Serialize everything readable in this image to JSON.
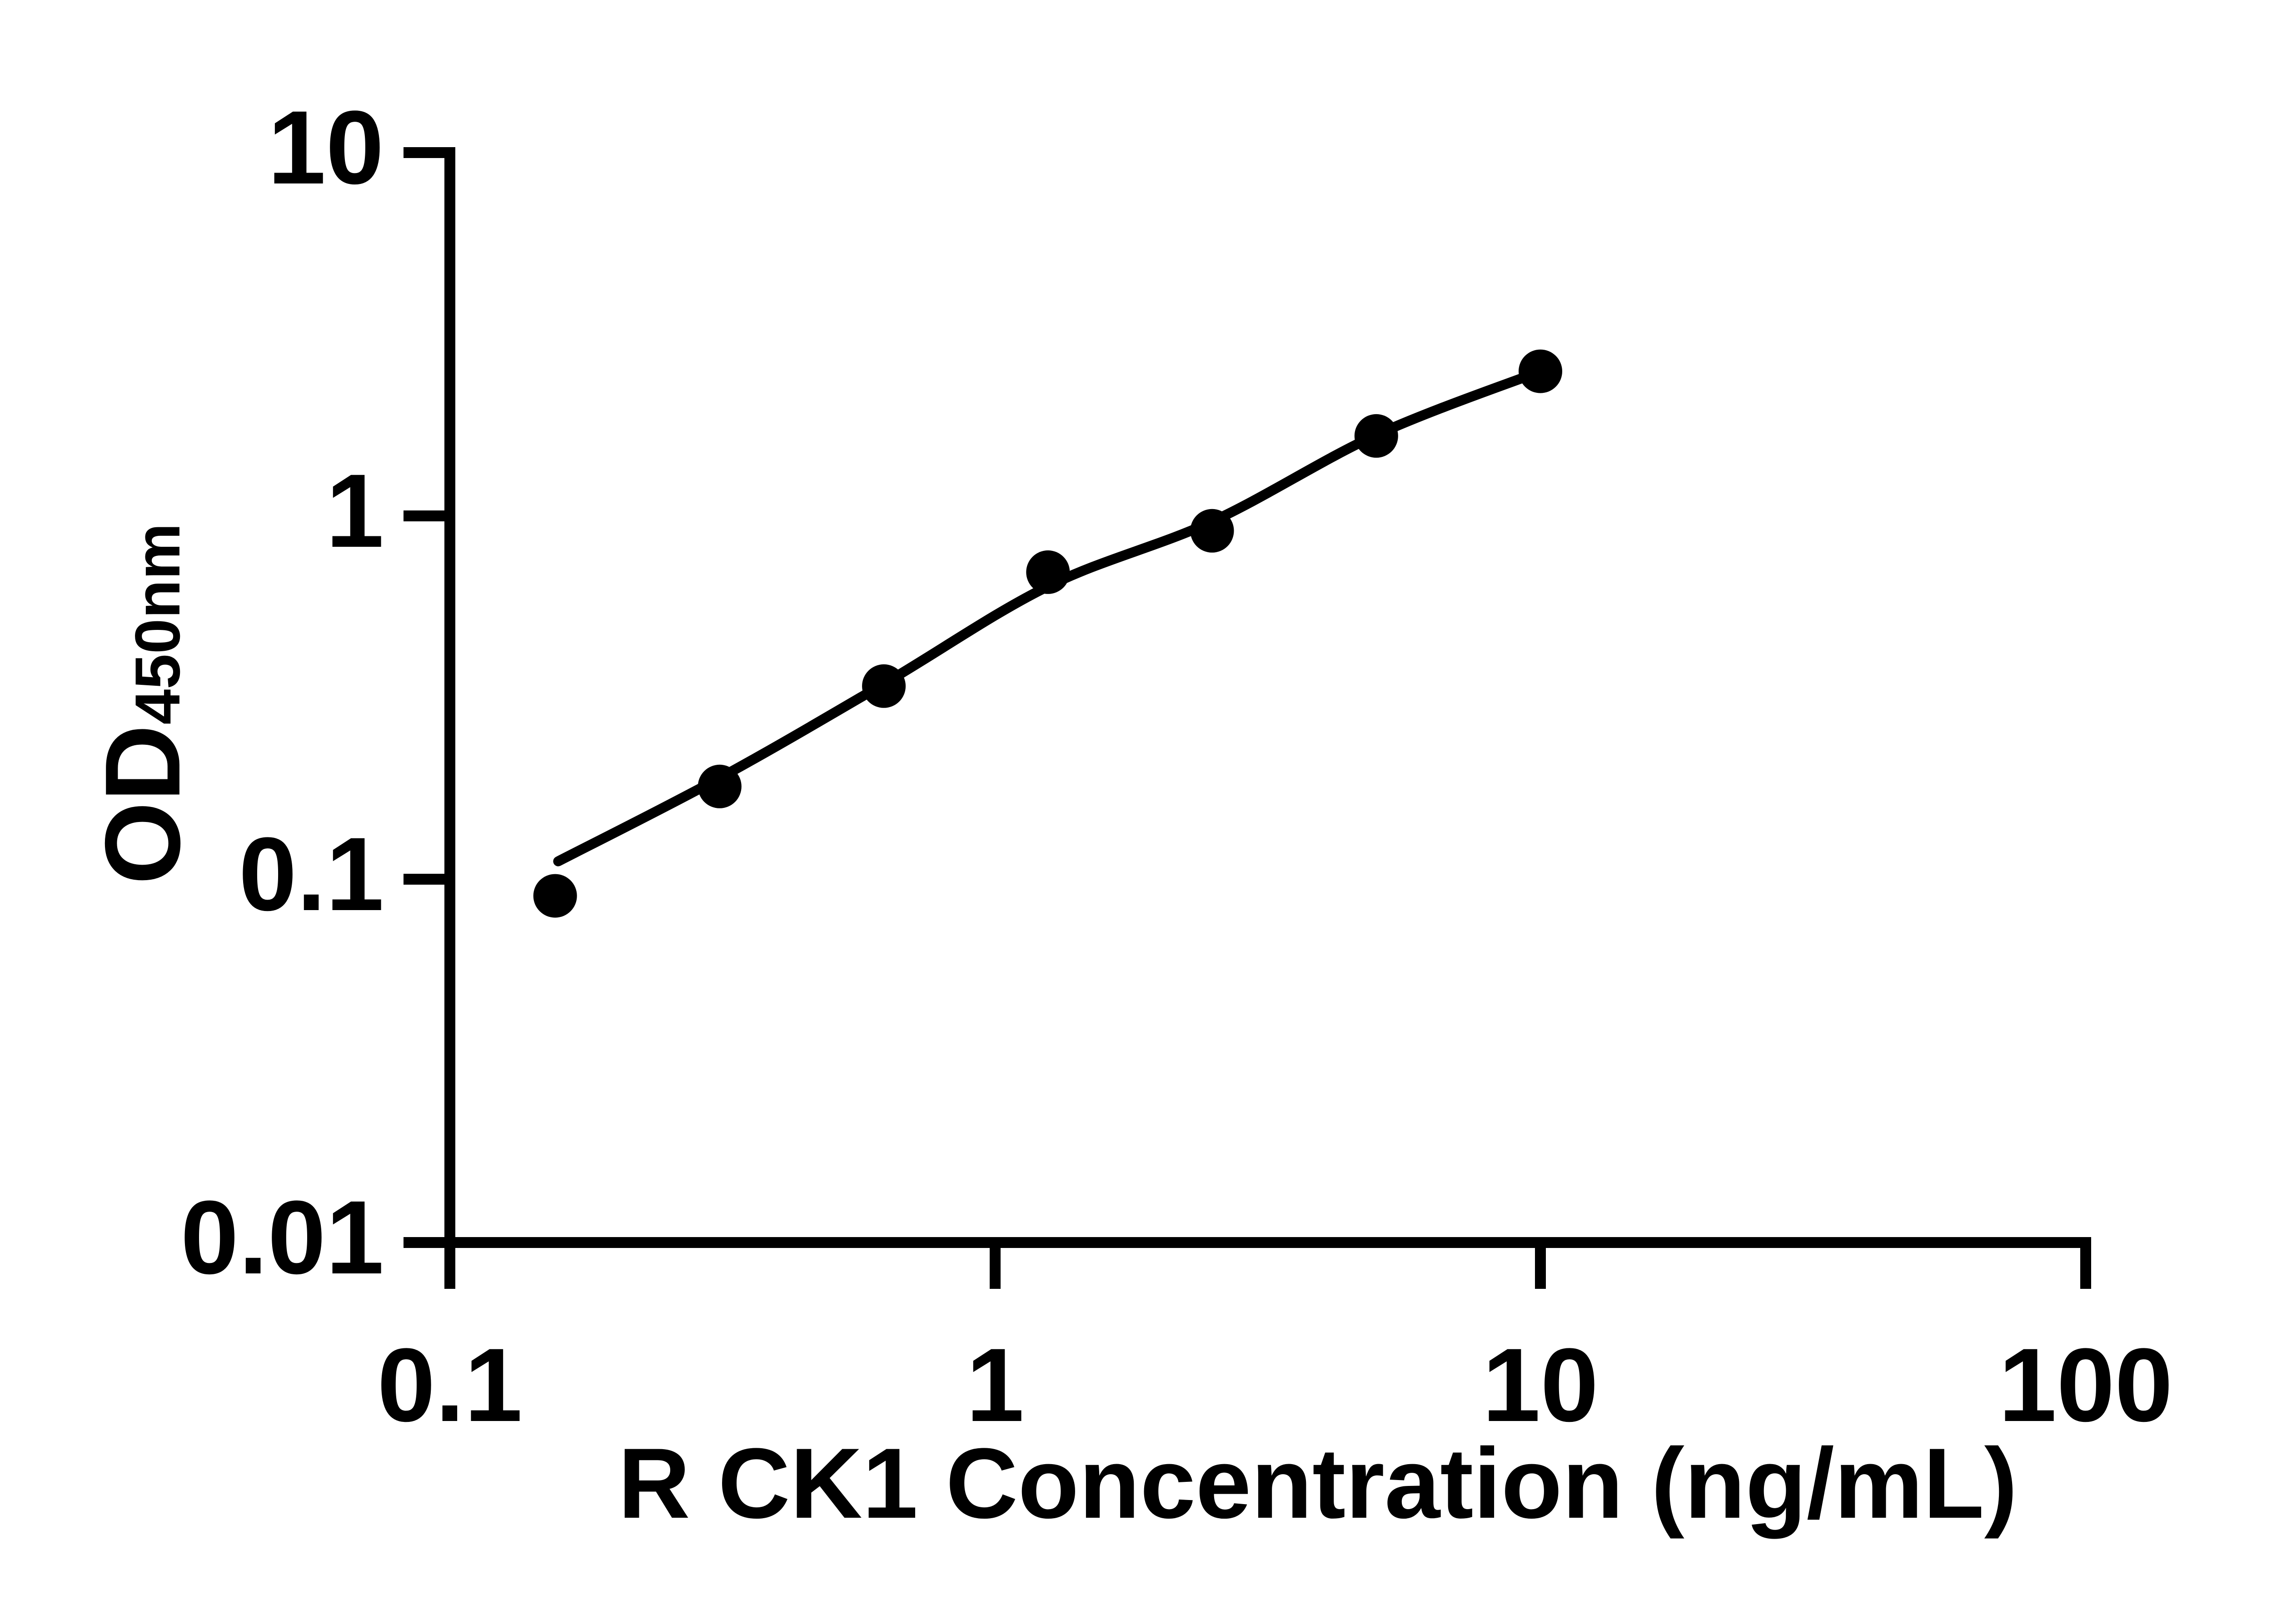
{
  "chart_data": {
    "type": "scatter",
    "title": "",
    "xlabel": "R CK1 Concentration (ng/mL)",
    "ylabel": "OD450nm",
    "ylabel_main": "OD",
    "ylabel_sub": "450nm",
    "x_scale": "log",
    "y_scale": "log",
    "xlim": [
      0.1,
      100
    ],
    "ylim": [
      0.01,
      10
    ],
    "grid": false,
    "legend_position": "none",
    "x_ticks": [
      {
        "value": 0.1,
        "label": "0.1"
      },
      {
        "value": 1,
        "label": "1"
      },
      {
        "value": 10,
        "label": "10"
      },
      {
        "value": 100,
        "label": "100"
      }
    ],
    "y_ticks": [
      {
        "value": 0.01,
        "label": "0.01"
      },
      {
        "value": 0.1,
        "label": "0.1"
      },
      {
        "value": 1,
        "label": "1"
      },
      {
        "value": 10,
        "label": "10"
      }
    ],
    "series": [
      {
        "name": "standard-curve-points",
        "marker": "circle",
        "color": "#000000",
        "points": [
          {
            "x": 0.156,
            "y": 0.09
          },
          {
            "x": 0.3125,
            "y": 0.18
          },
          {
            "x": 0.625,
            "y": 0.34
          },
          {
            "x": 1.25,
            "y": 0.7
          },
          {
            "x": 2.5,
            "y": 0.91
          },
          {
            "x": 5,
            "y": 1.66
          },
          {
            "x": 10,
            "y": 2.5
          }
        ]
      }
    ],
    "fit_curve": {
      "name": "fitted-curve",
      "color": "#000000",
      "points": [
        {
          "x": 0.158,
          "y": 0.112
        },
        {
          "x": 0.3125,
          "y": 0.19
        },
        {
          "x": 0.625,
          "y": 0.345
        },
        {
          "x": 1.25,
          "y": 0.64
        },
        {
          "x": 2.5,
          "y": 0.965
        },
        {
          "x": 5,
          "y": 1.67
        },
        {
          "x": 10,
          "y": 2.5
        }
      ]
    },
    "colors": {
      "foreground": "#000000",
      "background": "#ffffff"
    }
  }
}
